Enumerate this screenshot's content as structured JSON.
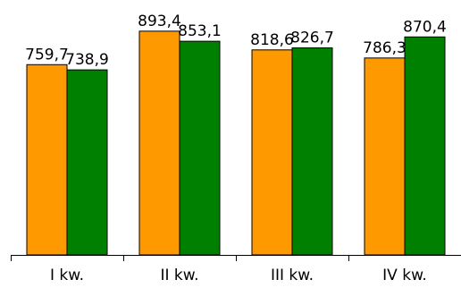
{
  "chart_data": {
    "type": "bar",
    "categories": [
      "I kw.",
      "II kw.",
      "III kw.",
      "IV kw."
    ],
    "series": [
      {
        "color": "#FF9900",
        "labels": [
          "759,7",
          "893,4",
          "818,6",
          "786,3"
        ],
        "values": [
          759.7,
          893.4,
          818.6,
          786.3
        ]
      },
      {
        "color": "#008000",
        "labels": [
          "738,9",
          "853,1",
          "826,7",
          "870,4"
        ],
        "values": [
          738.9,
          853.1,
          826.7,
          870.4
        ]
      }
    ],
    "ylim": [
      0,
      900
    ],
    "grid": false,
    "legend": "none",
    "bar_outline_color": "#000000",
    "axis_color": "#000000"
  }
}
